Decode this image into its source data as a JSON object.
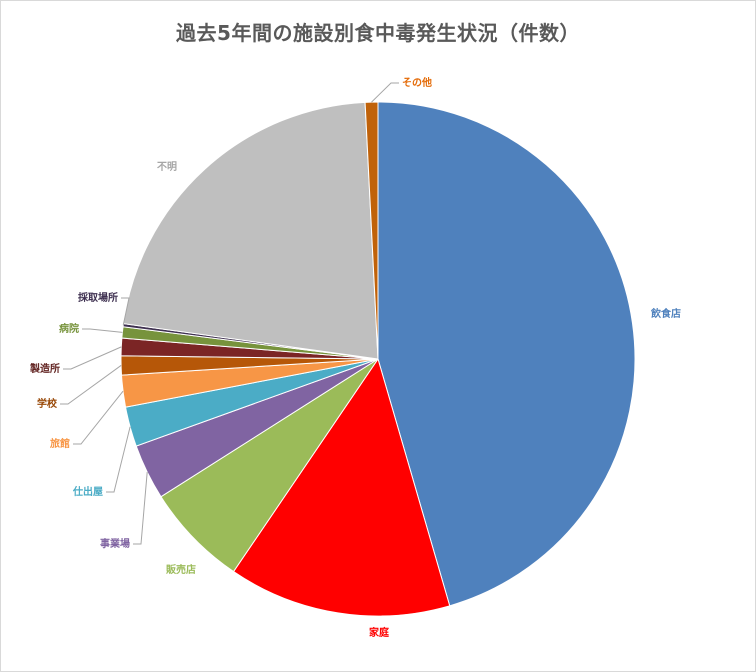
{
  "chart_data": {
    "type": "pie",
    "title": "過去5年間の施設別食中毒発生状況（件数）",
    "categories": [
      "飲食店",
      "家庭",
      "販売店",
      "事業場",
      "仕出屋",
      "旅館",
      "学校",
      "製造所",
      "病院",
      "採取場所",
      "不明",
      "その他"
    ],
    "values": [
      45.5,
      14.0,
      6.5,
      3.5,
      2.5,
      2.0,
      1.2,
      1.1,
      0.7,
      0.2,
      22.0,
      0.8
    ],
    "colors": [
      "#4f81bd",
      "#ff0000",
      "#9bbb59",
      "#8064a2",
      "#4bacc6",
      "#f79646",
      "#b65708",
      "#7b2525",
      "#77933c",
      "#3f3151",
      "#bfbfbf",
      "#c0620a"
    ],
    "label_colors": [
      "#4f81bd",
      "#ff0000",
      "#9bbb59",
      "#8064a2",
      "#4bacc6",
      "#f79646",
      "#984807",
      "#632523",
      "#77933c",
      "#3f3151",
      "#a6a6a6",
      "#e46c0a"
    ],
    "legend": "none"
  }
}
